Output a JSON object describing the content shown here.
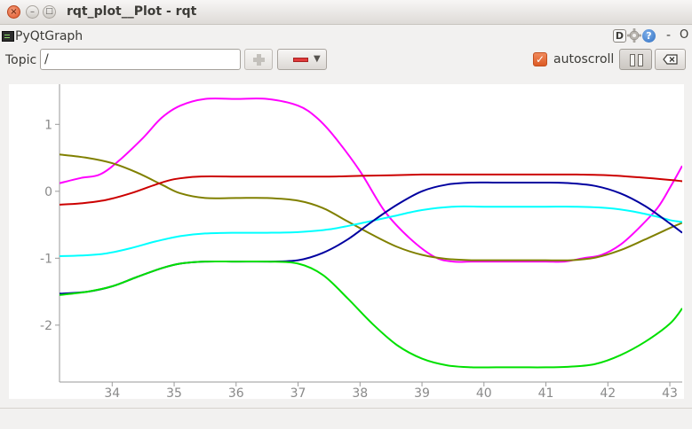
{
  "window": {
    "title": "rqt_plot__Plot - rqt",
    "close_glyph": "×",
    "minimize_glyph": "–",
    "maximize_glyph": "□"
  },
  "plugin": {
    "name": "PyQtGraph",
    "d_label": "D",
    "help_label": "?",
    "minimize_label": "-",
    "close_label": "O",
    "icons": [
      "terminal-icon",
      "gear-icon",
      "help-icon"
    ]
  },
  "toolbar": {
    "topic_label": "Topic",
    "topic_value": "/",
    "add_icon": "plus-icon",
    "remove_icon": "minus-icon",
    "autoscroll_label": "autoscroll",
    "autoscroll_checked": true,
    "pause_icon": "pause-icon",
    "clear_icon": "clear-icon"
  },
  "chart_data": {
    "type": "line",
    "title": "",
    "xlabel": "",
    "ylabel": "",
    "xlim": [
      33.15,
      43.2
    ],
    "ylim": [
      -2.85,
      1.6
    ],
    "x_ticks": [
      34,
      35,
      36,
      37,
      38,
      39,
      40,
      41,
      42,
      43
    ],
    "y_ticks": [
      1,
      0,
      -1,
      -2
    ],
    "grid": false,
    "legend": "none",
    "series": [
      {
        "color": "#ff00ff",
        "x": [
          33.15,
          33.5,
          33.8,
          34.1,
          34.5,
          34.8,
          35.1,
          35.5,
          36.0,
          36.5,
          37.0,
          37.3,
          37.6,
          38.0,
          38.4,
          38.8,
          39.2,
          39.5,
          39.8,
          40.2,
          40.6,
          41.0,
          41.3,
          41.6,
          41.9,
          42.2,
          42.5,
          42.8,
          43.0,
          43.2
        ],
        "y": [
          0.12,
          0.2,
          0.25,
          0.45,
          0.8,
          1.1,
          1.28,
          1.38,
          1.38,
          1.38,
          1.28,
          1.1,
          0.8,
          0.3,
          -0.3,
          -0.7,
          -0.98,
          -1.05,
          -1.05,
          -1.05,
          -1.05,
          -1.05,
          -1.05,
          -1.0,
          -0.95,
          -0.8,
          -0.55,
          -0.25,
          0.05,
          0.38
        ]
      },
      {
        "color": "#808000",
        "x": [
          33.15,
          33.6,
          34.0,
          34.4,
          34.8,
          35.1,
          35.5,
          36.0,
          36.5,
          37.0,
          37.4,
          37.8,
          38.2,
          38.6,
          39.0,
          39.4,
          39.8,
          40.2,
          40.6,
          41.0,
          41.4,
          41.8,
          42.2,
          42.6,
          43.0,
          43.2
        ],
        "y": [
          0.55,
          0.5,
          0.42,
          0.28,
          0.1,
          -0.03,
          -0.1,
          -0.1,
          -0.1,
          -0.14,
          -0.25,
          -0.45,
          -0.65,
          -0.83,
          -0.95,
          -1.01,
          -1.03,
          -1.03,
          -1.03,
          -1.03,
          -1.03,
          -0.99,
          -0.88,
          -0.72,
          -0.55,
          -0.47
        ]
      },
      {
        "color": "#cc0000",
        "x": [
          33.15,
          33.5,
          33.9,
          34.3,
          34.7,
          35.0,
          35.4,
          36.0,
          36.5,
          37.0,
          37.5,
          38.0,
          38.5,
          39.0,
          39.5,
          40.0,
          40.5,
          41.0,
          41.5,
          42.0,
          42.5,
          43.0,
          43.2
        ],
        "y": [
          -0.2,
          -0.18,
          -0.13,
          -0.03,
          0.1,
          0.18,
          0.22,
          0.22,
          0.22,
          0.22,
          0.22,
          0.23,
          0.24,
          0.25,
          0.25,
          0.25,
          0.25,
          0.25,
          0.25,
          0.24,
          0.21,
          0.17,
          0.15
        ]
      },
      {
        "color": "#00ffff",
        "x": [
          33.15,
          33.5,
          33.9,
          34.3,
          34.7,
          35.1,
          35.5,
          36.0,
          36.5,
          37.0,
          37.5,
          38.0,
          38.5,
          39.0,
          39.5,
          40.0,
          40.5,
          41.0,
          41.5,
          42.0,
          42.4,
          42.8,
          43.0,
          43.2
        ],
        "y": [
          -0.97,
          -0.96,
          -0.93,
          -0.85,
          -0.75,
          -0.67,
          -0.63,
          -0.62,
          -0.62,
          -0.61,
          -0.57,
          -0.48,
          -0.38,
          -0.28,
          -0.23,
          -0.23,
          -0.23,
          -0.23,
          -0.23,
          -0.25,
          -0.3,
          -0.38,
          -0.43,
          -0.46
        ]
      },
      {
        "color": "#0000a0",
        "x": [
          33.15,
          33.6,
          34.0,
          34.4,
          34.8,
          35.1,
          35.5,
          36.0,
          36.5,
          37.0,
          37.4,
          37.8,
          38.2,
          38.6,
          39.0,
          39.4,
          39.8,
          40.2,
          40.6,
          41.0,
          41.4,
          41.8,
          42.2,
          42.6,
          43.0,
          43.2
        ],
        "y": [
          -1.53,
          -1.5,
          -1.42,
          -1.28,
          -1.15,
          -1.08,
          -1.05,
          -1.05,
          -1.05,
          -1.03,
          -0.92,
          -0.72,
          -0.45,
          -0.2,
          0.0,
          0.1,
          0.13,
          0.13,
          0.13,
          0.13,
          0.12,
          0.08,
          -0.03,
          -0.22,
          -0.48,
          -0.62
        ]
      },
      {
        "color": "#00e000",
        "x": [
          33.15,
          33.6,
          34.0,
          34.4,
          34.8,
          35.1,
          35.5,
          36.0,
          36.5,
          37.0,
          37.4,
          37.8,
          38.2,
          38.6,
          39.0,
          39.4,
          39.8,
          40.2,
          40.6,
          41.0,
          41.4,
          41.8,
          42.2,
          42.6,
          43.0,
          43.2
        ],
        "y": [
          -1.55,
          -1.5,
          -1.42,
          -1.28,
          -1.15,
          -1.08,
          -1.05,
          -1.05,
          -1.05,
          -1.08,
          -1.25,
          -1.6,
          -1.98,
          -2.3,
          -2.5,
          -2.6,
          -2.63,
          -2.63,
          -2.63,
          -2.63,
          -2.62,
          -2.58,
          -2.45,
          -2.25,
          -1.98,
          -1.75
        ]
      }
    ]
  }
}
